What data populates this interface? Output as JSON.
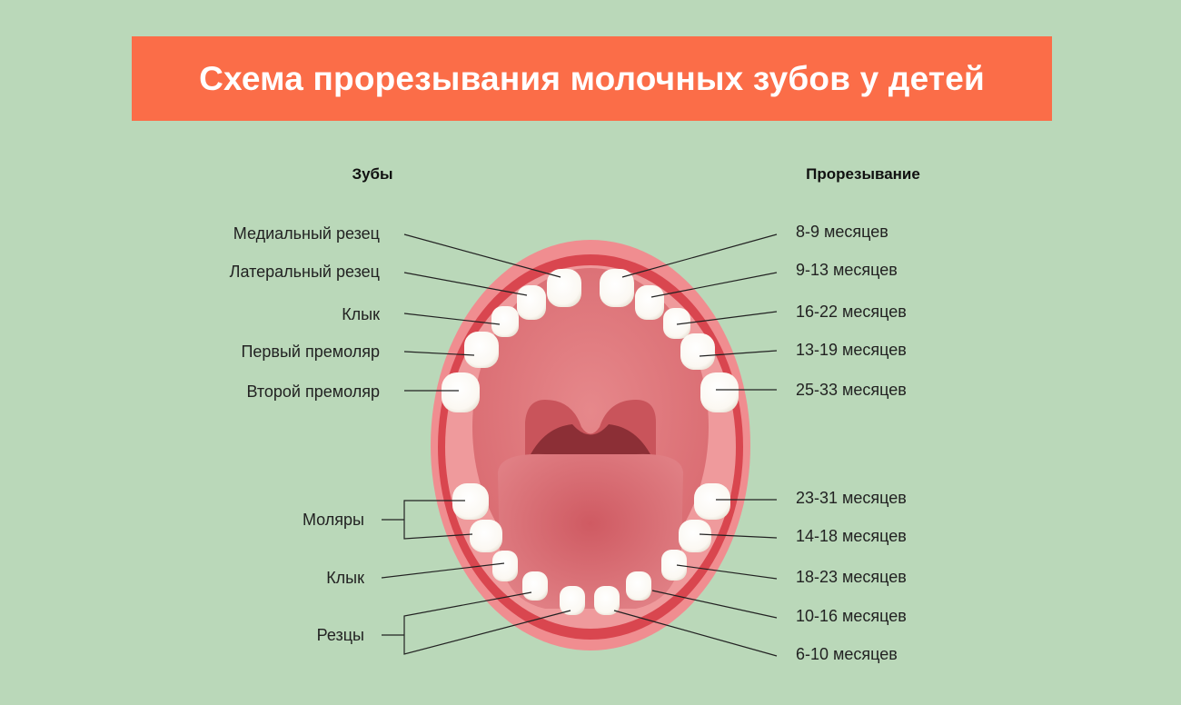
{
  "title": "Схема прорезывания молочных зубов у детей",
  "colors": {
    "background": "#bad8b9",
    "title_bar": "#fb6d48"
  },
  "headers": {
    "teeth": "Зубы",
    "eruption": "Прорезывание"
  },
  "upper_left_labels": [
    "Медиальный резец",
    "Латеральный резец",
    "Клык",
    "Первый премоляр",
    "Второй премоляр"
  ],
  "lower_left_labels": [
    "Моляры",
    "Клык",
    "Резцы"
  ],
  "upper_right_times": [
    "8-9 месяцев",
    "9-13 месяцев",
    "16-22 месяцев",
    "13-19 месяцев",
    "25-33 месяцев"
  ],
  "lower_right_times": [
    "23-31 месяцев",
    "14-18 месяцев",
    "18-23 месяцев",
    "10-16 месяцев",
    "6-10 месяцев"
  ]
}
